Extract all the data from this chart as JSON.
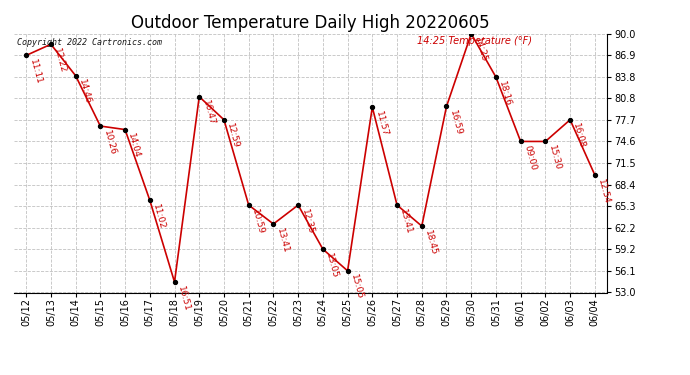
{
  "title": "Outdoor Temperature Daily High 20220605",
  "copyright": "Copyright 2022 Cartronics.com",
  "legend_label": "14:25 Temperature (°F)",
  "ylim": [
    53.0,
    90.0
  ],
  "yticks": [
    53.0,
    56.1,
    59.2,
    62.2,
    65.3,
    68.4,
    71.5,
    74.6,
    77.7,
    80.8,
    83.8,
    86.9,
    90.0
  ],
  "dates": [
    "05/12",
    "05/13",
    "05/14",
    "05/15",
    "05/16",
    "05/17",
    "05/18",
    "05/19",
    "05/20",
    "05/21",
    "05/22",
    "05/23",
    "05/24",
    "05/25",
    "05/26",
    "05/27",
    "05/28",
    "05/29",
    "05/30",
    "05/31",
    "06/01",
    "06/02",
    "06/03",
    "06/04"
  ],
  "values": [
    86.9,
    88.5,
    84.0,
    76.8,
    76.3,
    66.2,
    54.5,
    81.0,
    77.7,
    65.5,
    62.8,
    65.5,
    59.2,
    56.1,
    79.5,
    65.5,
    62.5,
    79.6,
    90.0,
    83.8,
    74.6,
    74.6,
    77.7,
    69.8
  ],
  "time_labels": [
    "11:11",
    "12:22",
    "14:46",
    "10:26",
    "14:04",
    "11:02",
    "16:51",
    "16:47",
    "12:59",
    "10:59",
    "13:41",
    "12:35",
    "13:05",
    "15:05",
    "11:57",
    "13:41",
    "18:45",
    "16:59",
    "14:25",
    "18:16",
    "09:00",
    "15:30",
    "16:08",
    "12:54"
  ],
  "line_color": "#cc0000",
  "marker_color": "#000000",
  "background_color": "#ffffff",
  "grid_color": "#bbbbbb",
  "title_fontsize": 12,
  "label_fontsize": 7,
  "annotation_fontsize": 6.5,
  "fig_width": 6.9,
  "fig_height": 3.75,
  "dpi": 100
}
